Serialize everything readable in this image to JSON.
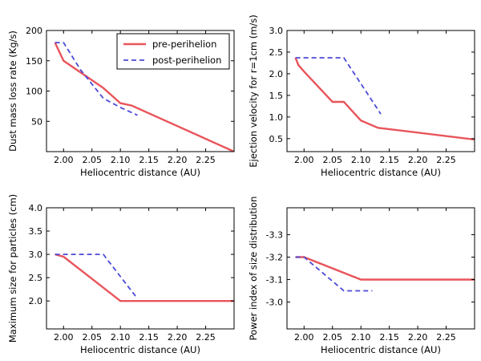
{
  "colors": {
    "pre": "#e8555b",
    "post": "#4a4ad8",
    "axis": "#000000"
  },
  "chart_data": [
    {
      "type": "line",
      "xlabel": "Heliocentric distance (AU)",
      "ylabel": "Dust mass loss rate (Kg/s)",
      "xlim": [
        1.97,
        2.3
      ],
      "ylim": [
        0,
        200
      ],
      "xticks": [
        "2.00",
        "2.05",
        "2.10",
        "2.15",
        "2.20",
        "2.25"
      ],
      "xtick_values": [
        2.0,
        2.05,
        2.1,
        2.15,
        2.2,
        2.25
      ],
      "yticks": [
        "50",
        "100",
        "150",
        "200"
      ],
      "ytick_values": [
        50,
        100,
        150,
        200
      ],
      "legend": {
        "placement": "top-right",
        "entries": [
          "pre-perihelion",
          "post-perihelion"
        ]
      },
      "series": [
        {
          "name": "pre-perihelion",
          "style": "solid",
          "x": [
            1.985,
            2.0,
            2.07,
            2.1,
            2.12,
            2.3
          ],
          "y": [
            180,
            150,
            105,
            80,
            76,
            0
          ]
        },
        {
          "name": "post-perihelion",
          "style": "dashed",
          "x": [
            1.985,
            2.0,
            2.03,
            2.07,
            2.1,
            2.13
          ],
          "y": [
            180,
            180,
            135,
            88,
            73,
            60
          ]
        }
      ]
    },
    {
      "type": "line",
      "xlabel": "Heliocentric distance (AU)",
      "ylabel": "Ejection velocity for r=1cm (m/s)",
      "xlim": [
        1.97,
        2.3
      ],
      "ylim": [
        0.2,
        3.0
      ],
      "xticks": [
        "2.00",
        "2.05",
        "2.10",
        "2.15",
        "2.20",
        "2.25"
      ],
      "xtick_values": [
        2.0,
        2.05,
        2.1,
        2.15,
        2.2,
        2.25
      ],
      "yticks": [
        "0.5",
        "1.0",
        "1.5",
        "2.0",
        "2.5",
        "3.0"
      ],
      "ytick_values": [
        0.5,
        1.0,
        1.5,
        2.0,
        2.5,
        3.0
      ],
      "series": [
        {
          "name": "pre-perihelion",
          "style": "solid",
          "x": [
            1.985,
            1.99,
            2.0,
            2.05,
            2.07,
            2.1,
            2.13,
            2.3
          ],
          "y": [
            2.37,
            2.2,
            2.05,
            1.35,
            1.35,
            0.92,
            0.75,
            0.48
          ]
        },
        {
          "name": "post-perihelion",
          "style": "dashed",
          "x": [
            1.985,
            2.0,
            2.07,
            2.135
          ],
          "y": [
            2.37,
            2.37,
            2.37,
            1.07
          ]
        }
      ]
    },
    {
      "type": "line",
      "xlabel": "Heliocentric distance (AU)",
      "ylabel": "Maximum size for particles (cm)",
      "xlim": [
        1.97,
        2.3
      ],
      "ylim": [
        1.4,
        4.0
      ],
      "xticks": [
        "2.00",
        "2.05",
        "2.10",
        "2.15",
        "2.20",
        "2.25"
      ],
      "xtick_values": [
        2.0,
        2.05,
        2.1,
        2.15,
        2.2,
        2.25
      ],
      "yticks": [
        "2.0",
        "2.5",
        "3.0",
        "3.5",
        "4.0"
      ],
      "ytick_values": [
        2.0,
        2.5,
        3.0,
        3.5,
        4.0
      ],
      "series": [
        {
          "name": "pre-perihelion",
          "style": "solid",
          "x": [
            1.985,
            2.0,
            2.1,
            2.3
          ],
          "y": [
            3.0,
            2.95,
            2.0,
            2.0
          ]
        },
        {
          "name": "post-perihelion",
          "style": "dashed",
          "x": [
            1.985,
            2.0,
            2.07,
            2.13
          ],
          "y": [
            3.0,
            3.0,
            3.0,
            2.05
          ]
        }
      ]
    },
    {
      "type": "line",
      "xlabel": "Heliocentric distance (AU)",
      "ylabel": "Power index of size distribution",
      "xlim": [
        1.97,
        2.3
      ],
      "ylim": [
        -3.42,
        -2.88
      ],
      "y_inverted": true,
      "xticks": [
        "2.00",
        "2.05",
        "2.10",
        "2.15",
        "2.20",
        "2.25"
      ],
      "xtick_values": [
        2.0,
        2.05,
        2.1,
        2.15,
        2.2,
        2.25
      ],
      "yticks": [
        "-3.3",
        "-3.2",
        "-3.1",
        "-3.0"
      ],
      "ytick_values": [
        -3.3,
        -3.2,
        -3.1,
        -3.0
      ],
      "series": [
        {
          "name": "pre-perihelion",
          "style": "solid",
          "x": [
            1.985,
            2.0,
            2.1,
            2.3
          ],
          "y": [
            -3.2,
            -3.2,
            -3.1,
            -3.1
          ]
        },
        {
          "name": "post-perihelion",
          "style": "dashed",
          "x": [
            1.985,
            2.0,
            2.07,
            2.12
          ],
          "y": [
            -3.2,
            -3.2,
            -3.05,
            -3.05
          ]
        }
      ]
    }
  ]
}
